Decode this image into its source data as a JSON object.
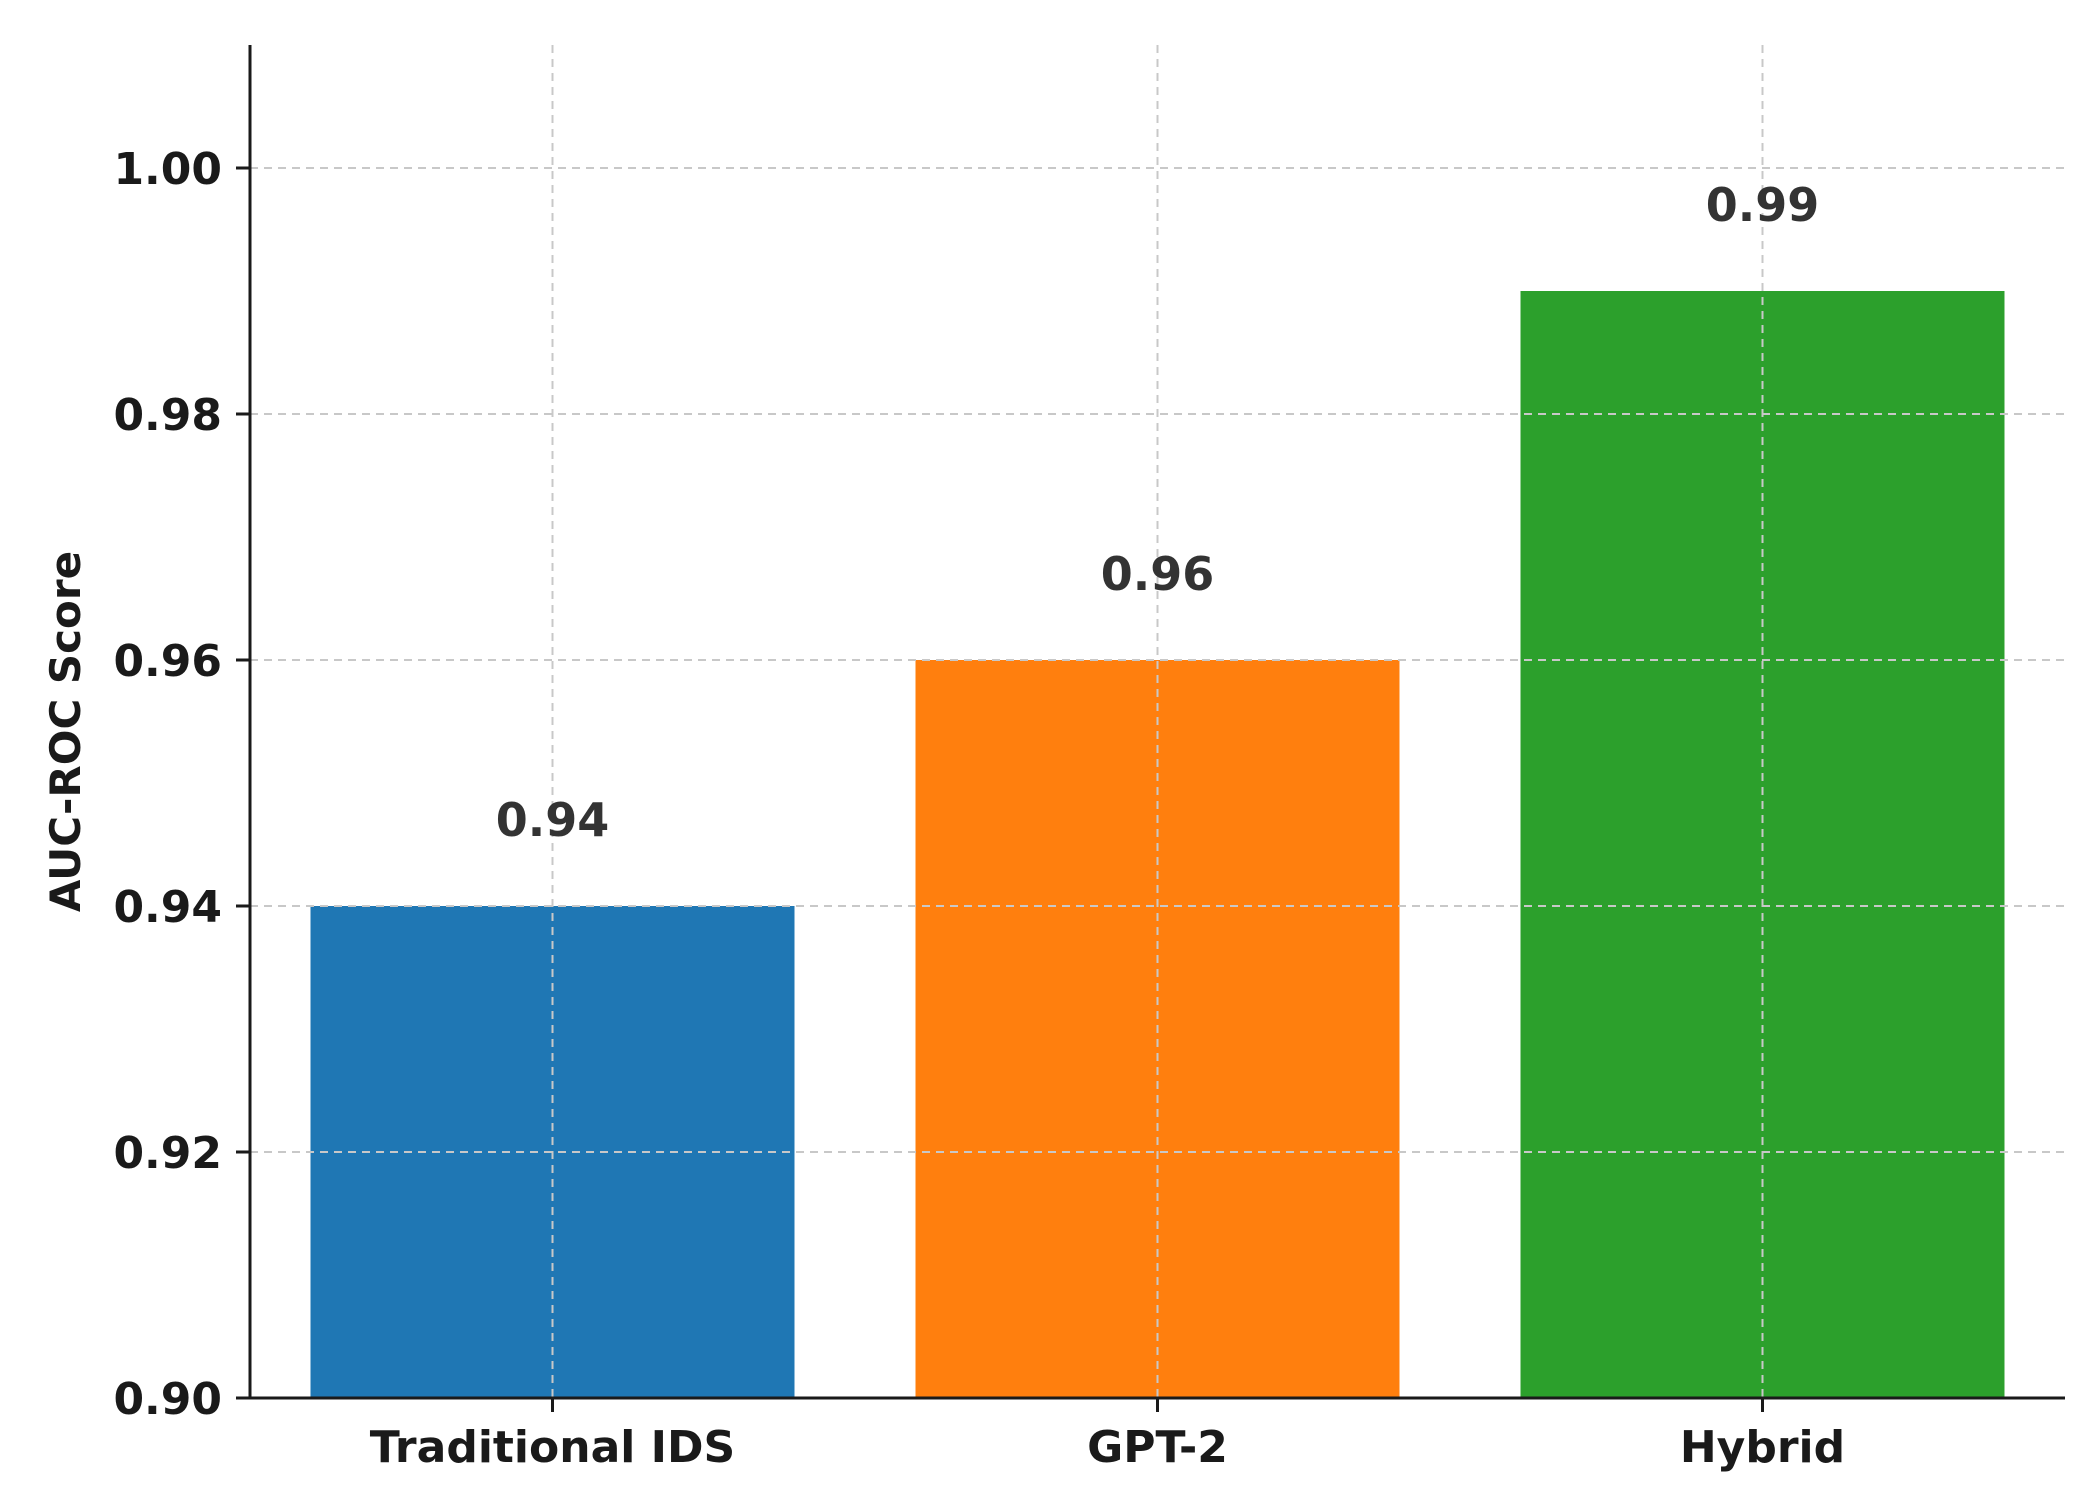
{
  "chart_data": {
    "type": "bar",
    "categories": [
      "Traditional IDS",
      "GPT-2",
      "Hybrid"
    ],
    "values": [
      0.94,
      0.96,
      0.99
    ],
    "value_labels": [
      "0.94",
      "0.96",
      "0.99"
    ],
    "colors": [
      "#1f77b4",
      "#ff7f0e",
      "#2ca02c"
    ],
    "title": "",
    "xlabel": "",
    "ylabel": "AUC-ROC Score",
    "ylim": [
      0.9,
      1.01
    ],
    "yticks": [
      0.9,
      0.92,
      0.94,
      0.96,
      0.98,
      1.0
    ],
    "ytick_labels": [
      "0.90",
      "0.92",
      "0.94",
      "0.96",
      "0.98",
      "1.00"
    ],
    "grid": true,
    "legend": "none"
  }
}
